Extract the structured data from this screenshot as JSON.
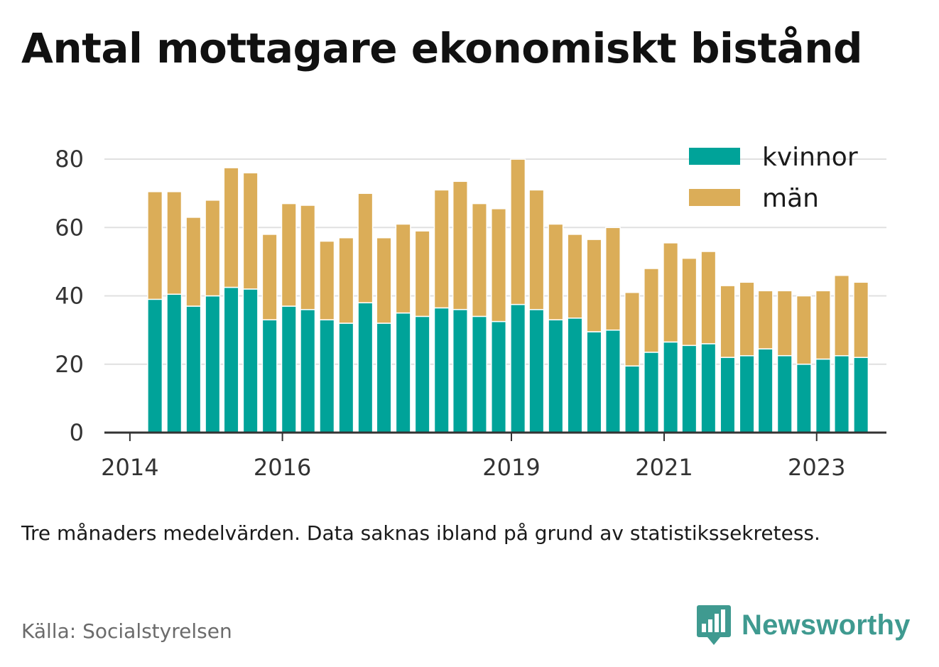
{
  "title": "Antal mottagare ekonomiskt bistånd",
  "note": "Tre månaders medelvärden. Data saknas ibland på grund av statistikssekretess.",
  "source": "Källa: Socialstyrelsen",
  "brand": {
    "name": "Newsworthy",
    "icon": "bar-chart-speech-bubble-icon",
    "color": "#3f9a90"
  },
  "chart_data": {
    "type": "bar",
    "stacked": true,
    "x_axis_type": "time",
    "x_domain": [
      "2013-09-01",
      "2023-12-01"
    ],
    "x_ticks": [
      "2014",
      "2016",
      "2019",
      "2021",
      "2023"
    ],
    "y_ticks": [
      0,
      20,
      40,
      60,
      80
    ],
    "ylim": [
      0,
      85
    ],
    "grid": true,
    "legend_position": "top-right",
    "periods": [
      "2014-05",
      "2014-08",
      "2014-11",
      "2015-02",
      "2015-05",
      "2015-08",
      "2015-11",
      "2016-02",
      "2016-05",
      "2016-08",
      "2016-11",
      "2017-02",
      "2017-05",
      "2017-08",
      "2017-11",
      "2018-02",
      "2018-05",
      "2018-08",
      "2018-11",
      "2019-02",
      "2019-05",
      "2019-08",
      "2019-11",
      "2020-02",
      "2020-05",
      "2020-08",
      "2020-11",
      "2021-02",
      "2021-05",
      "2021-08",
      "2021-11",
      "2022-02",
      "2022-05",
      "2022-08",
      "2022-11",
      "2023-02",
      "2023-05",
      "2023-08",
      "2023-11"
    ],
    "series": [
      {
        "name": "kvinnor",
        "color": "#00a399",
        "values": [
          39,
          40.5,
          37,
          40,
          42.5,
          42,
          33,
          37,
          36,
          33,
          32,
          38,
          32,
          35,
          34,
          36.5,
          36,
          34,
          32.5,
          37.5,
          36,
          33,
          33.5,
          29.5,
          30,
          19.5,
          23.5,
          26.5,
          25.5,
          26,
          22,
          22.5,
          24.5,
          22.5,
          20,
          21.5,
          22.5,
          22,
          null
        ]
      },
      {
        "name": "män",
        "color": "#dbad58",
        "values": [
          31.5,
          30,
          26,
          28,
          35,
          34,
          25,
          30,
          30.5,
          23,
          25,
          32,
          25,
          26,
          25,
          34.5,
          37.5,
          33,
          33,
          42.5,
          35,
          28,
          24.5,
          27,
          30,
          21.5,
          24.5,
          29,
          25.5,
          27,
          21,
          21.5,
          17,
          19,
          20,
          20,
          23.5,
          22,
          null
        ]
      }
    ]
  }
}
